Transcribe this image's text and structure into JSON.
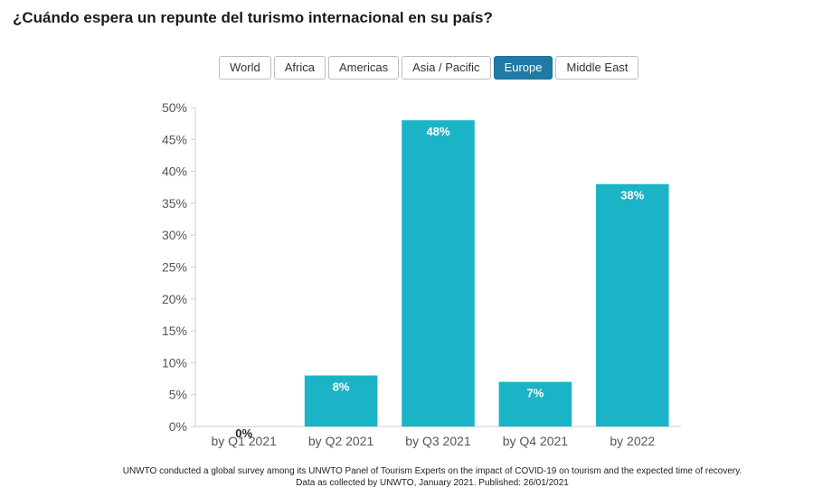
{
  "title": "¿Cuándo espera un repunte del turismo internacional en su país?",
  "tabs": [
    {
      "label": "World",
      "active": false
    },
    {
      "label": "Africa",
      "active": false
    },
    {
      "label": "Americas",
      "active": false
    },
    {
      "label": "Asia / Pacific",
      "active": false
    },
    {
      "label": "Europe",
      "active": true
    },
    {
      "label": "Middle East",
      "active": false
    }
  ],
  "colors": {
    "bar": "#1bb3c6",
    "active_tab": "#1f7ba6"
  },
  "chart_data": {
    "type": "bar",
    "categories": [
      "by Q1 2021",
      "by Q2 2021",
      "by Q3 2021",
      "by Q4 2021",
      "by 2022"
    ],
    "values": [
      0,
      8,
      48,
      7,
      38
    ],
    "data_labels": [
      "0%",
      "8%",
      "48%",
      "7%",
      "38%"
    ],
    "ylim": [
      0,
      50
    ],
    "yticks": [
      0,
      5,
      10,
      15,
      20,
      25,
      30,
      35,
      40,
      45,
      50
    ],
    "ytick_labels": [
      "0%",
      "5%",
      "10%",
      "15%",
      "20%",
      "25%",
      "30%",
      "35%",
      "40%",
      "45%",
      "50%"
    ],
    "grid": false
  },
  "footnote": {
    "line1": "UNWTO conducted a global survey among its UNWTO Panel of Tourism Experts on the impact of COVID-19 on tourism and the expected time of recovery.",
    "line2": "Data as collected by UNWTO, January 2021. Published: 26/01/2021"
  }
}
